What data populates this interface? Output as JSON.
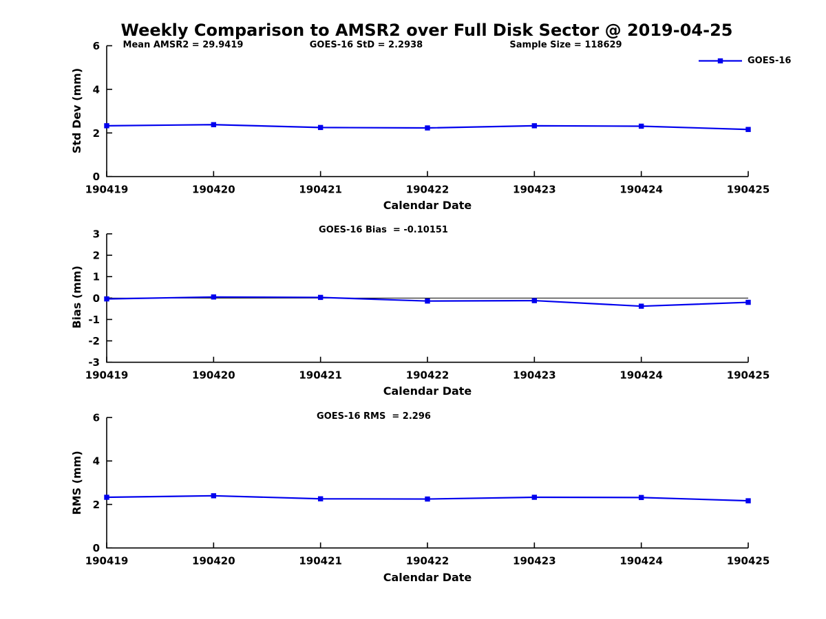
{
  "title": "Weekly Comparison to AMSR2 over Full Disk Sector @ 2019-04-25",
  "legend": {
    "label": "GOES-16"
  },
  "colors": {
    "series": "#0000EE",
    "axis": "#000000"
  },
  "chart_data": [
    {
      "type": "line",
      "id": "std-dev-weekly",
      "categories": [
        "190419",
        "190420",
        "190421",
        "190422",
        "190423",
        "190424",
        "190425"
      ],
      "series": [
        {
          "name": "GOES-16",
          "values": [
            2.33,
            2.38,
            2.25,
            2.23,
            2.33,
            2.31,
            2.16
          ]
        }
      ],
      "xlabel": "Calendar Date",
      "ylabel": "Std Dev (mm)",
      "ylim": [
        0,
        6
      ],
      "yticks": [
        0,
        2,
        4,
        6
      ],
      "grid": false,
      "zero_line": false,
      "legend": "top-right",
      "marker": "square",
      "annotations": [
        {
          "text": "Mean AMSR2 = 29.9419"
        },
        {
          "text": "GOES-16 StD = 2.2938"
        },
        {
          "text": "Sample Size = 118629"
        }
      ]
    },
    {
      "type": "line",
      "id": "bias-weekly",
      "categories": [
        "190419",
        "190420",
        "190421",
        "190422",
        "190423",
        "190424",
        "190425"
      ],
      "series": [
        {
          "name": "GOES-16",
          "values": [
            -0.04,
            0.05,
            0.03,
            -0.14,
            -0.12,
            -0.38,
            -0.2
          ]
        }
      ],
      "xlabel": "Calendar Date",
      "ylabel": "Bias (mm)",
      "ylim": [
        -3,
        3
      ],
      "yticks": [
        3,
        2,
        1,
        0,
        -1,
        -2,
        -3
      ],
      "grid": false,
      "zero_line": true,
      "legend": null,
      "marker": "square",
      "annotations": [
        {
          "text": "GOES-16 Bias  = -0.10151"
        }
      ]
    },
    {
      "type": "line",
      "id": "rms-weekly",
      "categories": [
        "190419",
        "190420",
        "190421",
        "190422",
        "190423",
        "190424",
        "190425"
      ],
      "series": [
        {
          "name": "GOES-16",
          "values": [
            2.33,
            2.4,
            2.26,
            2.25,
            2.33,
            2.32,
            2.17
          ]
        }
      ],
      "xlabel": "Calendar Date",
      "ylabel": "RMS (mm)",
      "ylim": [
        0,
        6
      ],
      "yticks": [
        0,
        2,
        4,
        6
      ],
      "grid": false,
      "zero_line": false,
      "legend": null,
      "marker": "square",
      "annotations": [
        {
          "text": "GOES-16 RMS  = 2.296"
        }
      ]
    }
  ]
}
